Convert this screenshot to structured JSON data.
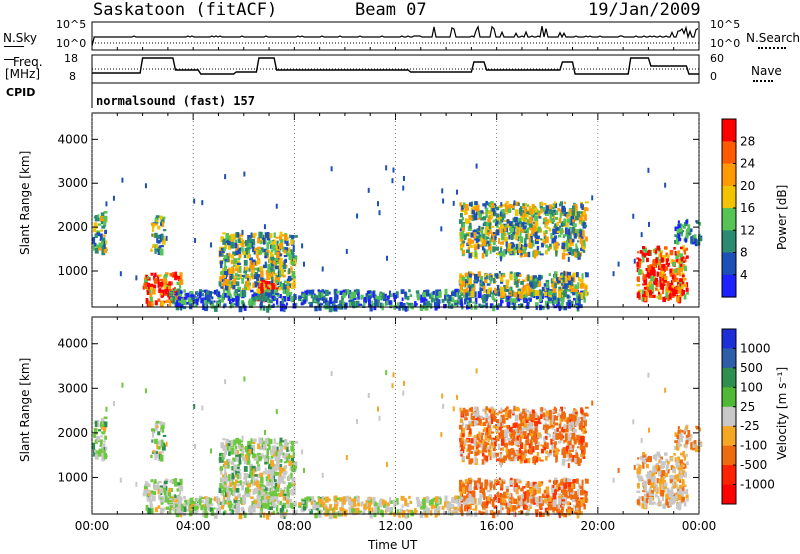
{
  "header": {
    "station": "Saskatoon (fitACF)",
    "beam": "Beam 07",
    "date": "19/Jan/2009"
  },
  "status_panel": {
    "nsky_label": "N.Sky",
    "nsearch_label": "N.Search",
    "freq_label_1": "Freq.",
    "freq_label_2": "[MHz]",
    "nave_label": "Nave",
    "cpid_label": "CPID",
    "cpid_text": "normalsound (fast) 157",
    "nsky_ticks": [
      "10^5",
      "10^0"
    ],
    "nsearch_ticks": [
      "10^5",
      "10^0"
    ],
    "freq_ticks": [
      "18",
      "8"
    ],
    "nave_ticks": [
      "60",
      "0"
    ]
  },
  "chart_data": [
    {
      "type": "heatmap",
      "name": "Power",
      "ylabel": "Slant Range [km]",
      "xlabel": "Time UT",
      "colorbar_label": "Power [dB]",
      "colorbar_ticks": [
        "28",
        "24",
        "20",
        "16",
        "12",
        "8",
        "4"
      ],
      "colorbar_colors": [
        "#ff0000",
        "#ff5a00",
        "#ff9a00",
        "#f2c400",
        "#55c455",
        "#2c8a70",
        "#1c4fb8",
        "#1e20ff"
      ],
      "y_ticks": [
        1000,
        2000,
        3000,
        4000
      ],
      "ylim": [
        180,
        4600
      ],
      "x_ticks": [
        "00:00",
        "04:00",
        "08:00",
        "12:00",
        "16:00",
        "20:00",
        "00:00"
      ],
      "xlim_hours": [
        0,
        24
      ],
      "echo_regions": [
        {
          "t0": 0.0,
          "t1": 0.5,
          "r0": 1500,
          "r1": 2400,
          "level": "medium"
        },
        {
          "t0": 2.0,
          "t1": 3.5,
          "r0": 300,
          "r1": 1000,
          "level": "strong"
        },
        {
          "t0": 2.3,
          "t1": 2.8,
          "r0": 1500,
          "r1": 2300,
          "level": "medium"
        },
        {
          "t0": 5.0,
          "t1": 8.0,
          "r0": 600,
          "r1": 1900,
          "level": "medium"
        },
        {
          "t0": 6.5,
          "t1": 7.3,
          "r0": 400,
          "r1": 800,
          "level": "strong"
        },
        {
          "t0": 3.0,
          "t1": 19.5,
          "r0": 200,
          "r1": 600,
          "level": "weak"
        },
        {
          "t0": 14.5,
          "t1": 19.5,
          "r0": 1400,
          "r1": 2600,
          "level": "medium"
        },
        {
          "t0": 14.5,
          "t1": 19.5,
          "r0": 500,
          "r1": 1000,
          "level": "medium"
        },
        {
          "t0": 21.5,
          "t1": 23.5,
          "r0": 400,
          "r1": 1600,
          "level": "strong"
        },
        {
          "t0": 23.0,
          "t1": 24.0,
          "r0": 1700,
          "r1": 2200,
          "level": "weak"
        }
      ]
    },
    {
      "type": "heatmap",
      "name": "Velocity",
      "ylabel": "Slant Range [km]",
      "xlabel": "Time UT",
      "colorbar_label": "Velocity [m s⁻¹]",
      "colorbar_ticks": [
        "1000",
        "500",
        "100",
        "25",
        "-25",
        "-100",
        "-500",
        "-1000"
      ],
      "colorbar_colors": [
        "#1d2fd8",
        "#2c5fa8",
        "#2f8f4f",
        "#4fb834",
        "#c8c8c8",
        "#f5a623",
        "#f06a10",
        "#ff2200",
        "#ff0000"
      ],
      "y_ticks": [
        1000,
        2000,
        3000,
        4000
      ],
      "ylim": [
        180,
        4600
      ],
      "x_ticks": [
        "00:00",
        "04:00",
        "08:00",
        "12:00",
        "16:00",
        "20:00",
        "00:00"
      ],
      "xlim_hours": [
        0,
        24
      ]
    }
  ]
}
